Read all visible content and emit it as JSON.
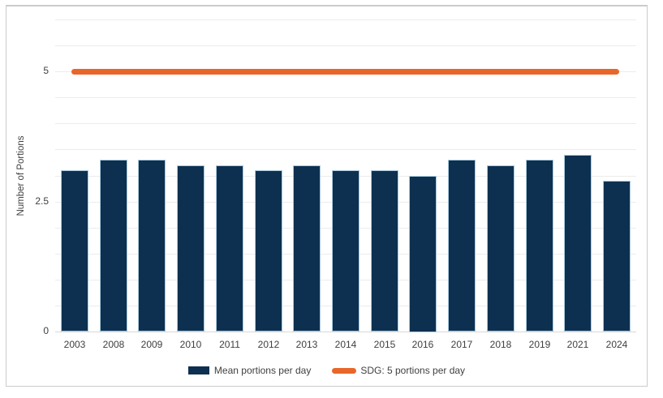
{
  "chart_data": {
    "type": "bar",
    "title": "",
    "categories": [
      "2003",
      "2008",
      "2009",
      "2010",
      "2011",
      "2012",
      "2013",
      "2014",
      "2015",
      "2016",
      "2017",
      "2018",
      "2019",
      "2021",
      "2024"
    ],
    "series": [
      {
        "name": "Mean portions per day",
        "kind": "bar",
        "values": [
          3.1,
          3.3,
          3.3,
          3.2,
          3.2,
          3.1,
          3.2,
          3.1,
          3.1,
          3.0,
          3.3,
          3.2,
          3.3,
          3.4,
          2.9
        ],
        "color": "#0d3050"
      },
      {
        "name": "SDG: 5 portions per day",
        "kind": "line",
        "constant_value": 5,
        "color": "#e9662a"
      }
    ],
    "xlabel": "",
    "ylabel": "Number of Portions",
    "ylim": [
      0,
      6
    ],
    "ytick_labels": [
      "0",
      "2.5",
      "5"
    ],
    "gridline_step": 0.5,
    "grid": true,
    "legend_position": "bottom"
  },
  "colors": {
    "bar_fill": "#0d3050",
    "bar_border": "#a9c9dc",
    "sdg_line": "#e9662a",
    "gridline": "#ececec",
    "axis_line": "#d9d9d9",
    "text": "#404040",
    "frame_border": "#cbcbcb",
    "background": "#ffffff"
  }
}
